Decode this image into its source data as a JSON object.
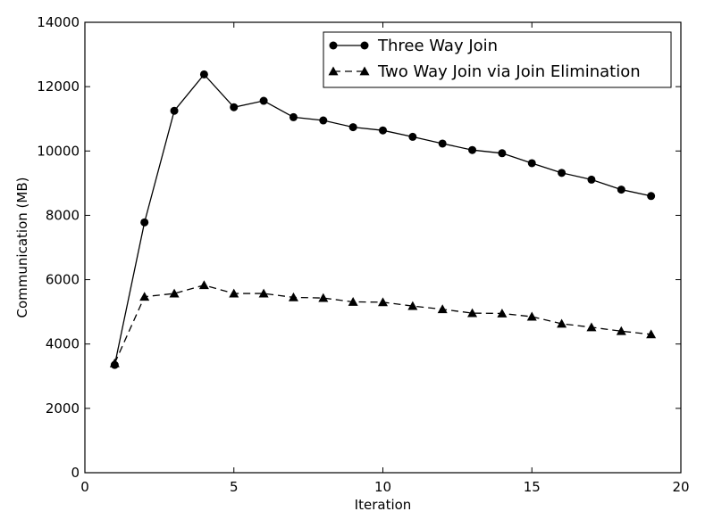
{
  "chart_data": {
    "type": "line",
    "title": "",
    "xlabel": "Iteration",
    "ylabel": "Communication (MB)",
    "xlim": [
      0,
      20
    ],
    "ylim": [
      0,
      14000
    ],
    "xticks": [
      0,
      5,
      10,
      15,
      20
    ],
    "yticks": [
      0,
      2000,
      4000,
      6000,
      8000,
      10000,
      12000,
      14000
    ],
    "grid": false,
    "legend_position": "top-right",
    "x": [
      1,
      2,
      3,
      4,
      5,
      6,
      7,
      8,
      9,
      10,
      11,
      12,
      13,
      14,
      15,
      16,
      17,
      18,
      19
    ],
    "series": [
      {
        "name": "Three Way Join",
        "marker": "circle",
        "line_style": "solid",
        "color": "#000000",
        "values": [
          3350,
          7780,
          11250,
          12380,
          11360,
          11560,
          11050,
          10950,
          10740,
          10640,
          10440,
          10230,
          10030,
          9930,
          9620,
          9320,
          9110,
          8800,
          8600
        ]
      },
      {
        "name": "Two Way Join via Join Elimination",
        "marker": "triangle",
        "line_style": "dashed",
        "color": "#000000",
        "values": [
          3400,
          5470,
          5570,
          5830,
          5570,
          5570,
          5450,
          5430,
          5310,
          5300,
          5180,
          5080,
          4960,
          4950,
          4850,
          4630,
          4520,
          4400,
          4300
        ]
      }
    ]
  }
}
